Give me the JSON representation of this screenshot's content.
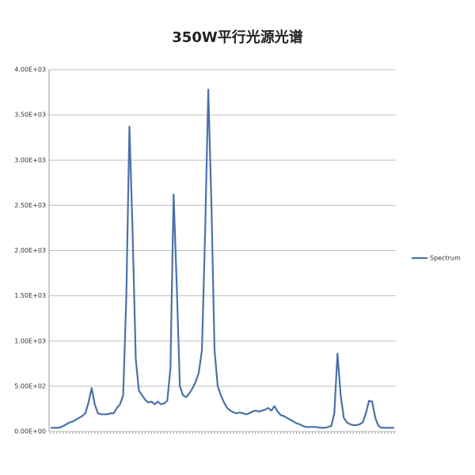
{
  "chart_data": {
    "type": "line",
    "title": "350W平行光源光谱",
    "categories": [
      null,
      null,
      null,
      null,
      null,
      null,
      null,
      null,
      null,
      null,
      null,
      null,
      null,
      null,
      null,
      null,
      null,
      null,
      null,
      null,
      null,
      null,
      null,
      null,
      null,
      null,
      null,
      null,
      null,
      null,
      null,
      null,
      null,
      null,
      null,
      null,
      null,
      null,
      null,
      null,
      null,
      null,
      null,
      null,
      null,
      null,
      null,
      null,
      null,
      null,
      null,
      null,
      null,
      null,
      null,
      null,
      null,
      null,
      null,
      null,
      null,
      null,
      null,
      null,
      null,
      null,
      null,
      null,
      null,
      null,
      null,
      null,
      null,
      null,
      null,
      null,
      null,
      null,
      null,
      null,
      null,
      null,
      null,
      null,
      null,
      null,
      null,
      null,
      null,
      null,
      null,
      null,
      null,
      null,
      null,
      null,
      null,
      null,
      null,
      null,
      null,
      null,
      null,
      null,
      null,
      null,
      null,
      null,
      null,
      null
    ],
    "series": [
      {
        "name": "Spectrum",
        "color": "#4a72a8",
        "values": [
          40,
          40,
          40,
          45,
          60,
          80,
          100,
          110,
          130,
          150,
          170,
          200,
          320,
          480,
          300,
          200,
          190,
          190,
          190,
          200,
          200,
          260,
          300,
          400,
          1500,
          3370,
          2200,
          800,
          450,
          400,
          350,
          320,
          330,
          300,
          330,
          300,
          310,
          340,
          700,
          2620,
          1600,
          500,
          400,
          380,
          420,
          480,
          550,
          650,
          900,
          2200,
          3780,
          2500,
          900,
          500,
          400,
          320,
          260,
          230,
          210,
          200,
          210,
          200,
          190,
          200,
          220,
          230,
          220,
          230,
          240,
          260,
          230,
          280,
          220,
          180,
          170,
          150,
          130,
          110,
          90,
          80,
          60,
          50,
          50,
          50,
          50,
          45,
          40,
          40,
          50,
          60,
          200,
          860,
          400,
          150,
          100,
          80,
          70,
          70,
          80,
          100,
          200,
          340,
          330,
          150,
          60,
          40,
          40,
          40,
          40,
          40
        ]
      }
    ],
    "ylim": [
      0,
      4000
    ],
    "yticks": [
      {
        "value": 0,
        "label": "0.00E+00"
      },
      {
        "value": 500,
        "label": "5.00E+02"
      },
      {
        "value": 1000,
        "label": "1.00E+03"
      },
      {
        "value": 1500,
        "label": "1.50E+03"
      },
      {
        "value": 2000,
        "label": "2.00E+03"
      },
      {
        "value": 2500,
        "label": "2.50E+03"
      },
      {
        "value": 3000,
        "label": "3.00E+03"
      },
      {
        "value": 3500,
        "label": "3.50E+03"
      },
      {
        "value": 4000,
        "label": "4.00E+03"
      }
    ],
    "grid": true,
    "legend": "right"
  }
}
